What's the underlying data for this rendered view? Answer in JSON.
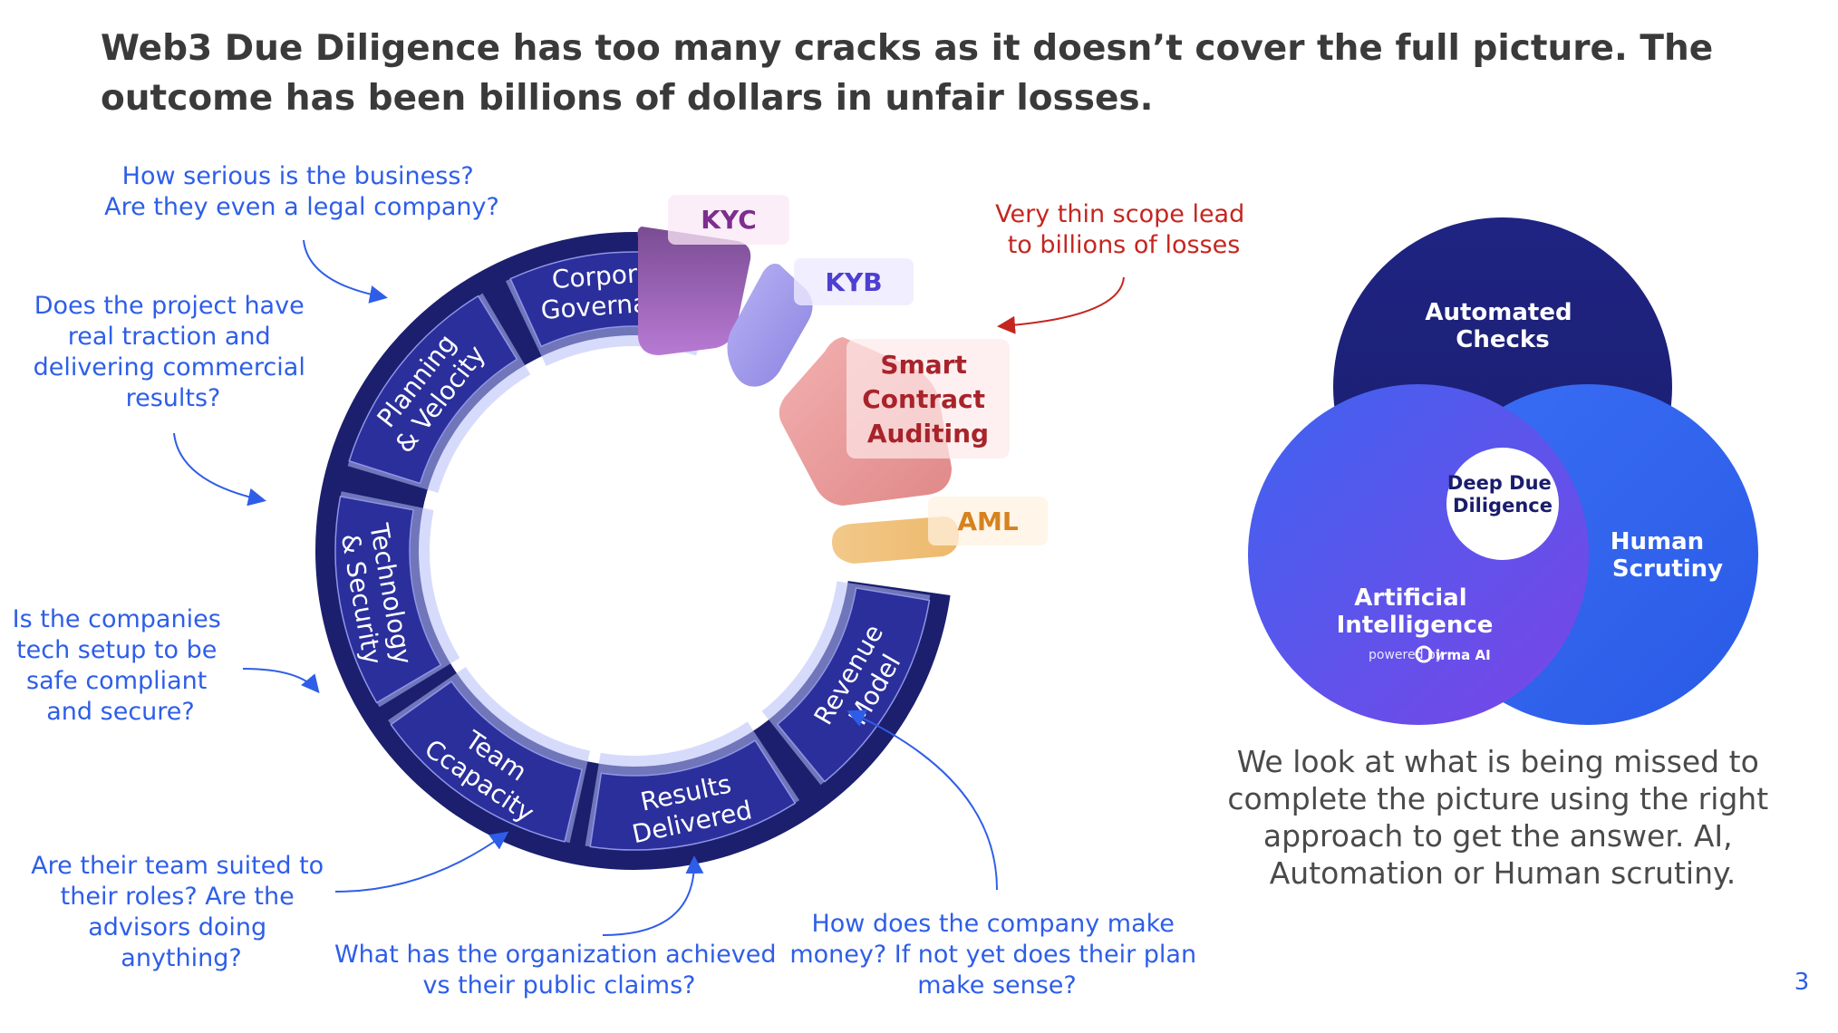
{
  "title": "Web3 Due Diligence has too many cracks as it doesn’t cover the full picture. The outcome has been billions of dollars in unfair losses.",
  "wheel": {
    "segments": [
      {
        "name": "corporate-governance",
        "lines": [
          "Corporate",
          "Governance"
        ]
      },
      {
        "name": "planning-velocity",
        "lines": [
          "Planning",
          "& Velocity"
        ]
      },
      {
        "name": "technology-security",
        "lines": [
          "Technology",
          "& Security"
        ]
      },
      {
        "name": "team-capacity",
        "lines": [
          "Team",
          "Ccapacity"
        ]
      },
      {
        "name": "results-delivered",
        "lines": [
          "Results",
          "Delivered"
        ]
      },
      {
        "name": "revenue-model",
        "lines": [
          "Revenue",
          "Model"
        ]
      }
    ],
    "chips": {
      "kyc": "KYC",
      "kyb": "KYB",
      "smart_contract": [
        "Smart",
        "Contract",
        "Auditing"
      ],
      "aml": "AML"
    }
  },
  "questions": {
    "corporate": [
      "How serious is the business?",
      "Are they even a legal company?"
    ],
    "planning": [
      "Does the project have",
      "real traction and",
      "delivering commercial",
      "results?"
    ],
    "technology": [
      "Is the companies",
      "tech setup to be",
      "safe compliant",
      "and secure?"
    ],
    "team": [
      "Are their team suited to",
      "their roles? Are the",
      "advisors doing",
      "anything?"
    ],
    "results": [
      "What has the organization achieved",
      "vs their public claims?"
    ],
    "revenue": [
      "How does the company make",
      "money? If not yet does their plan",
      "make sense?"
    ],
    "thin_scope": [
      "Very thin scope lead",
      "to billions of losses"
    ]
  },
  "venn": {
    "automated": [
      "Automated",
      "Checks"
    ],
    "human": [
      "Human",
      "Scrutiny"
    ],
    "ai": [
      "Artificial",
      "Intelligence"
    ],
    "center": [
      "Deep Due",
      "Diligence"
    ],
    "powered_by": "powered by",
    "brand": "irma AI"
  },
  "approach_text": [
    "We look at what is being missed to",
    "complete the picture using the right",
    "approach to get the answer. AI,",
    "Automation or Human scrutiny."
  ],
  "page_number": "3",
  "colors": {
    "ring_dark": "#1b1f6e",
    "segment": "#2b2f9b",
    "question_blue": "#2e5ee8",
    "question_red": "#c4261f",
    "kyc": "#9b62b5",
    "kyb": "#9a93e6",
    "smart": "#e89696",
    "aml": "#f0c27c"
  }
}
